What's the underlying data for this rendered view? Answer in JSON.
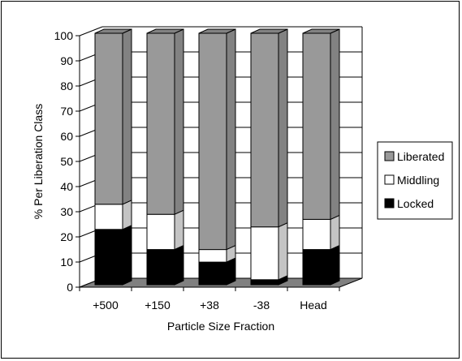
{
  "chart_data": {
    "type": "bar",
    "stacked": true,
    "three_d": true,
    "categories": [
      "+500",
      "+150",
      "+38",
      "-38",
      "Head"
    ],
    "series": [
      {
        "name": "Locked",
        "color": "#000000",
        "values": [
          22,
          14,
          9,
          2,
          14
        ]
      },
      {
        "name": "Middling",
        "color": "#ffffff",
        "values": [
          10,
          14,
          5,
          21,
          12
        ]
      },
      {
        "name": "Liberated",
        "color": "#999999",
        "values": [
          68,
          72,
          86,
          77,
          74
        ]
      }
    ],
    "legend_order": [
      "Liberated",
      "Middling",
      "Locked"
    ],
    "legend_position": "right",
    "xlabel": "Particle Size Fraction",
    "ylabel": "% Per Liberation Class",
    "ylim": [
      0,
      100
    ],
    "yticks": [
      "0",
      "10",
      "20",
      "30",
      "40",
      "50",
      "60",
      "70",
      "80",
      "90",
      "100"
    ],
    "grid": true,
    "floor_color": "#808080"
  }
}
